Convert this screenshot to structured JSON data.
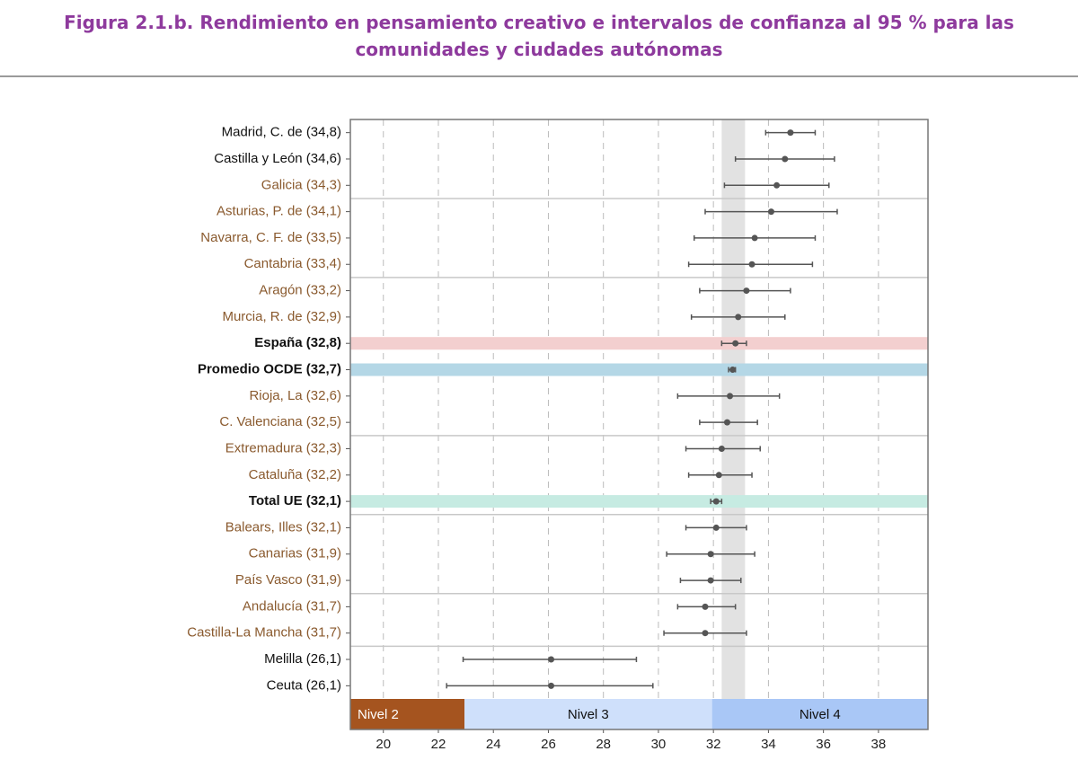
{
  "chart_data": {
    "type": "dotplot",
    "title": [
      "Figura 2.1.b. Rendimiento en pensamiento creativo e intervalos de confianza al 95 % para las",
      "comunidades y ciudades autónomas"
    ],
    "categories": [
      "Madrid, C. de (34,8)",
      "Castilla y León (34,6)",
      "Galicia (34,3)",
      "Asturias, P. de (34,1)",
      "Navarra, C. F. de (33,5)",
      "Cantabria (33,4)",
      "Aragón (33,2)",
      "Murcia, R. de (32,9)",
      "España (32,8)",
      "Promedio OCDE (32,7)",
      "Rioja, La (32,6)",
      "C. Valenciana (32,5)",
      "Extremadura (32,3)",
      "Cataluña (32,2)",
      "Total UE (32,1)",
      "Balears, Illes (32,1)",
      "Canarias (31,9)",
      "País Vasco (31,9)",
      "Andalucía (31,7)",
      "Castilla-La Mancha (31,7)",
      "Melilla (26,1)",
      "Ceuta (26,1)"
    ],
    "values": [
      34.8,
      34.6,
      34.3,
      34.1,
      33.5,
      33.4,
      33.2,
      32.9,
      32.8,
      32.7,
      32.6,
      32.5,
      32.3,
      32.2,
      32.1,
      32.1,
      31.9,
      31.9,
      31.7,
      31.7,
      26.1,
      26.1
    ],
    "ci_low": [
      33.9,
      32.8,
      32.4,
      31.7,
      31.3,
      31.1,
      31.5,
      31.2,
      32.3,
      32.55,
      30.7,
      31.5,
      31.0,
      31.1,
      31.9,
      31.0,
      30.3,
      30.8,
      30.7,
      30.2,
      22.9,
      22.3
    ],
    "ci_high": [
      35.7,
      36.4,
      36.2,
      36.5,
      35.7,
      35.6,
      34.8,
      34.6,
      33.2,
      32.8,
      34.4,
      33.6,
      33.7,
      33.4,
      32.3,
      33.2,
      33.5,
      33.0,
      32.8,
      33.2,
      29.2,
      29.8
    ],
    "label_colors": [
      "#111111",
      "#111111",
      "#8a5a2e",
      "#8a5a2e",
      "#8a5a2e",
      "#8a5a2e",
      "#8a5a2e",
      "#8a5a2e",
      "#111111",
      "#111111",
      "#8a5a2e",
      "#8a5a2e",
      "#8a5a2e",
      "#8a5a2e",
      "#111111",
      "#8a5a2e",
      "#8a5a2e",
      "#8a5a2e",
      "#8a5a2e",
      "#8a5a2e",
      "#111111",
      "#111111"
    ],
    "highlights": [
      {
        "index": 8,
        "color": "#f3cfcf"
      },
      {
        "index": 9,
        "color": "#b4d7e6"
      },
      {
        "index": 14,
        "color": "#c6ebe2"
      }
    ],
    "reference_band": [
      32.3,
      33.15
    ],
    "levels": [
      {
        "label": "Nivel 2",
        "from": 18.8,
        "to": 22.95,
        "color": "#a5541f",
        "text_color": "#ffffff"
      },
      {
        "label": "Nivel 3",
        "from": 22.95,
        "to": 31.95,
        "color": "#cfe0fb",
        "text_color": "#111111"
      },
      {
        "label": "Nivel 4",
        "from": 31.95,
        "to": 39.8,
        "color": "#a9c7f6",
        "text_color": "#111111"
      }
    ],
    "marker_color": "#555555",
    "xlim": [
      18.8,
      39.8
    ],
    "xticks": [
      20,
      22,
      24,
      26,
      28,
      30,
      32,
      34,
      36,
      38
    ],
    "grid": true
  }
}
